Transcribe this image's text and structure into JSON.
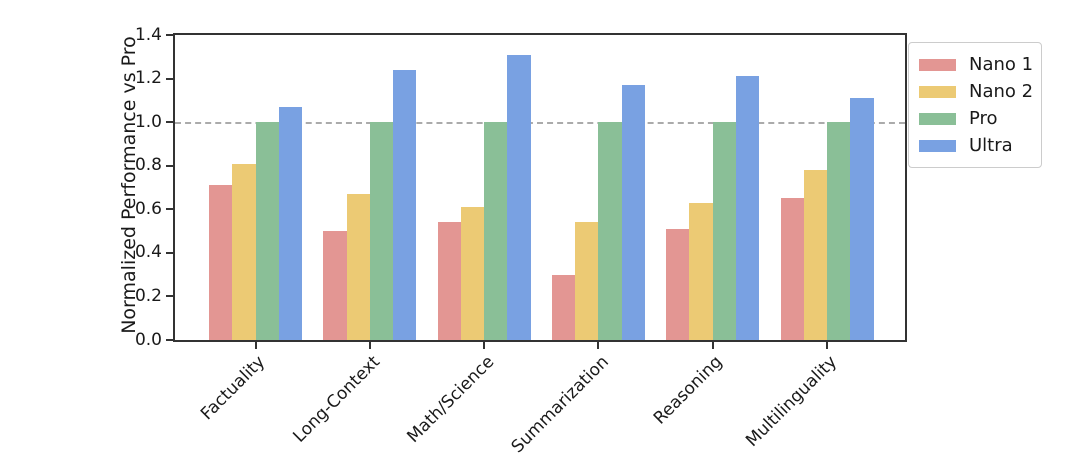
{
  "chart_data": {
    "type": "bar",
    "title": "",
    "xlabel": "",
    "ylabel": "Normalized Performance vs Pro",
    "categories": [
      "Factuality",
      "Long-Context",
      "Math/Science",
      "Summarization",
      "Reasoning",
      "Multilinguality"
    ],
    "series": [
      {
        "name": "Nano 1",
        "color": "#E39693",
        "values": [
          0.71,
          0.5,
          0.54,
          0.3,
          0.51,
          0.65
        ]
      },
      {
        "name": "Nano 2",
        "color": "#ECCA74",
        "values": [
          0.81,
          0.67,
          0.61,
          0.54,
          0.63,
          0.78
        ]
      },
      {
        "name": "Pro",
        "color": "#8ABF97",
        "values": [
          1.0,
          1.0,
          1.0,
          1.0,
          1.0,
          1.0
        ]
      },
      {
        "name": "Ultra",
        "color": "#79A1E2",
        "values": [
          1.07,
          1.24,
          1.31,
          1.17,
          1.21,
          1.11
        ]
      }
    ],
    "ylim": [
      0.0,
      1.4
    ],
    "yticks": [
      "0.0",
      "0.2",
      "0.4",
      "0.6",
      "0.8",
      "1.0",
      "1.2",
      "1.4"
    ],
    "reference_line": 1.0,
    "reference_line_style": "dashed-gray",
    "legend_position": "upper-right-outside",
    "legend_entries": [
      "Nano 1",
      "Nano 2",
      "Pro",
      "Ultra"
    ],
    "grid": false,
    "x_tick_label_rotation_deg": 45
  }
}
